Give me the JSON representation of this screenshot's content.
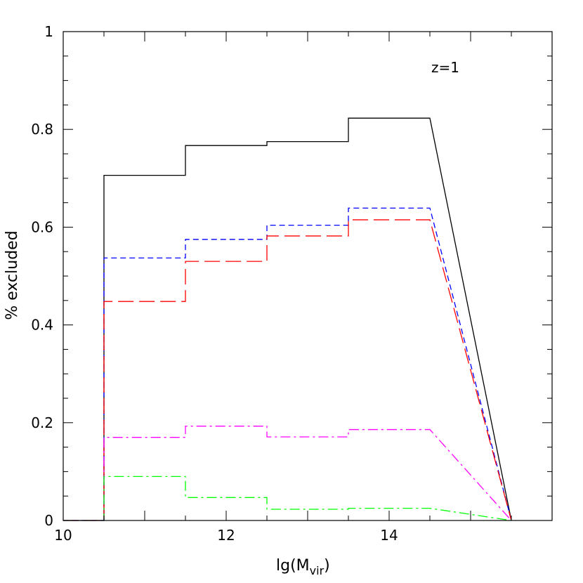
{
  "chart_data": {
    "type": "line",
    "title": "",
    "xlabel": "lg(M",
    "xlabel_sub": "vir",
    "xlabel_close": ")",
    "ylabel": "% excluded",
    "annotation": "z=1",
    "xlim": [
      10,
      16
    ],
    "ylim": [
      0,
      1
    ],
    "x_ticks": [
      10,
      12,
      14
    ],
    "x_tick_labels": [
      "10",
      "12",
      "14"
    ],
    "y_ticks": [
      0,
      0.2,
      0.4,
      0.6,
      0.8,
      1
    ],
    "y_tick_labels": [
      "0",
      "0.2",
      "0.4",
      "0.6",
      "0.8",
      "1"
    ],
    "x_minor_step": 0.5,
    "y_minor_step": 0.05,
    "grid": false,
    "legend": "none",
    "bin_edges": [
      10.5,
      11.5,
      12.5,
      13.5,
      14.5
    ],
    "series": [
      {
        "color": "#000000",
        "dash": "solid",
        "values": [
          0.706,
          0.767,
          0.775,
          0.823
        ]
      },
      {
        "color": "#0000ff",
        "dash": "short-dash",
        "values": [
          0.537,
          0.575,
          0.604,
          0.639
        ]
      },
      {
        "color": "#ff0000",
        "dash": "long-dash",
        "values": [
          0.448,
          0.53,
          0.582,
          0.615
        ]
      },
      {
        "color": "#ff00ff",
        "dash": "dash-dot",
        "values": [
          0.17,
          0.193,
          0.171,
          0.186
        ]
      },
      {
        "color": "#00ff00",
        "dash": "dash-dot",
        "values": [
          0.09,
          0.047,
          0.023,
          0.025
        ]
      }
    ]
  }
}
